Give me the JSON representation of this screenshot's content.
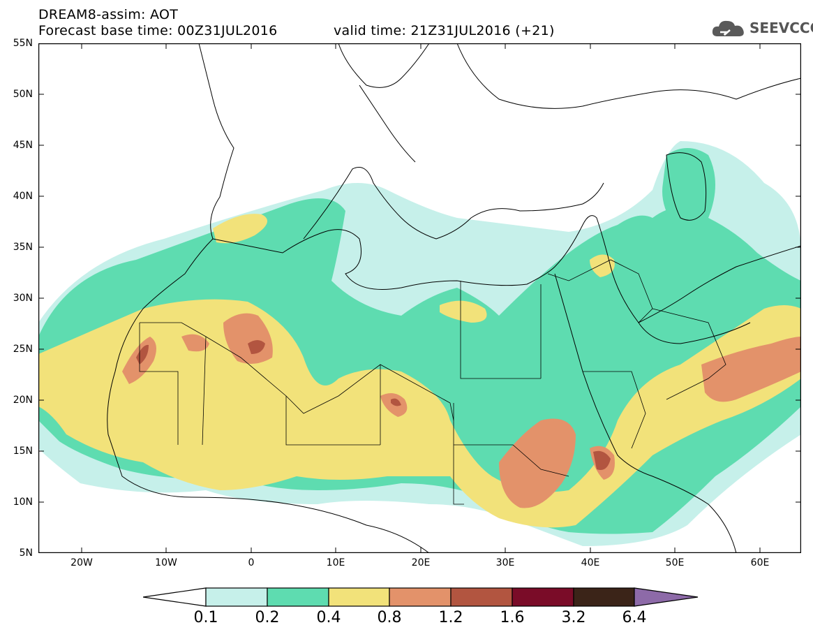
{
  "header": {
    "title": "DREAM8-assim: AOT",
    "base_time": "Forecast base time: 00Z31JUL2016",
    "valid_time": "valid time: 21Z31JUL2016 (+21)"
  },
  "logo": {
    "text": "SEEVCCC",
    "icon": "cloud-logo-icon"
  },
  "axes": {
    "lat_labels": [
      "55N",
      "50N",
      "45N",
      "40N",
      "35N",
      "30N",
      "25N",
      "20N",
      "15N",
      "10N",
      "5N"
    ],
    "lon_labels": [
      "20W",
      "10W",
      "0",
      "10E",
      "20E",
      "30E",
      "40E",
      "50E",
      "60E"
    ]
  },
  "colorbar": {
    "labels": [
      "0.1",
      "0.2",
      "0.4",
      "0.8",
      "1.2",
      "1.6",
      "3.2",
      "6.4"
    ],
    "colors": {
      "below": "#ffffff",
      "c1": "#c6f0ea",
      "c2": "#5edcb0",
      "c3": "#f2e27a",
      "c4": "#e3926a",
      "c5": "#b25540",
      "c6": "#7a0c28",
      "c7": "#3b2418",
      "above": "#8d6aa8"
    }
  }
}
